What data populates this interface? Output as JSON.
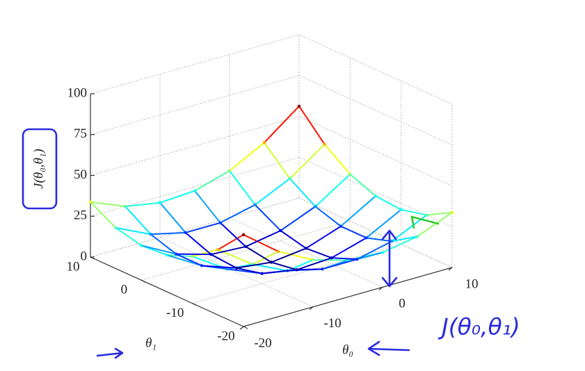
{
  "chart_data": {
    "type": "surface",
    "zlabel": "J(θ₀,θ₁)",
    "xlabel": "θ₀",
    "ylabel": "θ₁",
    "x": [
      -20,
      -15,
      -10,
      -5,
      0,
      5,
      10
    ],
    "y": [
      -20,
      -15,
      -10,
      -5,
      0,
      5,
      10
    ],
    "z": [
      [
        56.25,
        40,
        28.75,
        22.5,
        21.25,
        25,
        33.75
      ],
      [
        40,
        25,
        15,
        10,
        10,
        15,
        25
      ],
      [
        28.75,
        15,
        6.25,
        2.5,
        3.75,
        10,
        21.25
      ],
      [
        22.5,
        10,
        2.5,
        0,
        2.5,
        10,
        22.5
      ],
      [
        21.25,
        10,
        3.75,
        2.5,
        6.25,
        15,
        28.75
      ],
      [
        25,
        15,
        10,
        10,
        15,
        25,
        40
      ],
      [
        33.75,
        25,
        21.25,
        22.5,
        28.75,
        40,
        56.25
      ]
    ],
    "xlim": [
      -20,
      10
    ],
    "xticks": [
      -20,
      -10,
      0,
      10
    ],
    "ylim": [
      -20,
      10
    ],
    "yticks": [
      -20,
      -10,
      0,
      10
    ],
    "zlim": [
      0,
      100
    ],
    "zticks": [
      0,
      25,
      50,
      75,
      100
    ],
    "grid": true,
    "colormap": "jet"
  },
  "annotations": {
    "handwritten": "J(θ₀,θ₁)"
  }
}
